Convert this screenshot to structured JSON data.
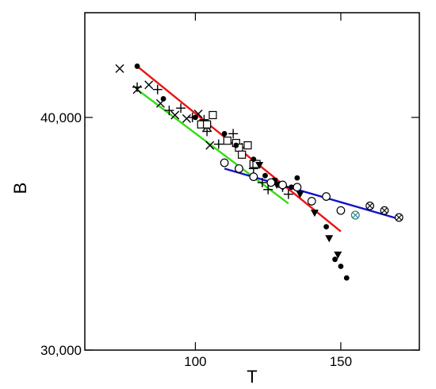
{
  "chart_data": {
    "type": "scatter",
    "title": "",
    "xlabel": "T",
    "ylabel": "B",
    "xlim": [
      62,
      177
    ],
    "ylim": [
      30000,
      44500
    ],
    "x_ticks": [
      {
        "value": 100,
        "label": "100"
      },
      {
        "value": 150,
        "label": "150"
      }
    ],
    "y_ticks": [
      {
        "value": 30000,
        "label": "30,000"
      },
      {
        "value": 40000,
        "label": "40,000"
      }
    ],
    "series": [
      {
        "marker": "x",
        "color": "#000000",
        "points": [
          [
            74,
            42100
          ],
          [
            80,
            41200
          ],
          [
            84,
            41400
          ],
          [
            88,
            40600
          ],
          [
            93,
            40100
          ],
          [
            97,
            39950
          ],
          [
            101,
            40150
          ],
          [
            104,
            39600
          ],
          [
            105,
            38800
          ]
        ]
      },
      {
        "marker": "plus",
        "color": "#000000",
        "points": [
          [
            80,
            41300
          ],
          [
            87,
            41200
          ],
          [
            91,
            40300
          ],
          [
            95,
            40400
          ],
          [
            99,
            40000
          ],
          [
            103,
            39900
          ],
          [
            104,
            39400
          ],
          [
            108,
            38850
          ],
          [
            113,
            39300
          ],
          [
            116,
            38700
          ],
          [
            120,
            37800
          ],
          [
            123,
            37200
          ],
          [
            125,
            36900
          ],
          [
            128,
            37200
          ],
          [
            130,
            37000
          ],
          [
            132,
            36700
          ]
        ]
      },
      {
        "marker": "square",
        "color": "#000000",
        "points": [
          [
            102,
            39700
          ],
          [
            104,
            39700
          ],
          [
            106,
            40100
          ],
          [
            111,
            39000
          ],
          [
            114,
            38900
          ],
          [
            115,
            38700
          ],
          [
            116,
            38400
          ],
          [
            118,
            38800
          ],
          [
            120,
            38000
          ],
          [
            121,
            38000
          ]
        ]
      },
      {
        "marker": "filled-circle",
        "color": "#000000",
        "points": [
          [
            80,
            42200
          ],
          [
            89,
            40800
          ],
          [
            100,
            40000
          ],
          [
            110,
            39300
          ],
          [
            114,
            38800
          ],
          [
            120,
            38200
          ],
          [
            124,
            37500
          ],
          [
            127,
            37300
          ],
          [
            130,
            37100
          ],
          [
            133,
            37000
          ],
          [
            135,
            37400
          ],
          [
            145,
            35300
          ],
          [
            148,
            33900
          ],
          [
            150,
            33600
          ],
          [
            152,
            33100
          ]
        ]
      },
      {
        "marker": "filled-triangle-down",
        "color": "#000000",
        "points": [
          [
            122,
            37950
          ],
          [
            128,
            37100
          ],
          [
            130,
            37000
          ],
          [
            136,
            36700
          ],
          [
            141,
            35900
          ],
          [
            146,
            34800
          ],
          [
            149,
            34100
          ]
        ]
      },
      {
        "marker": "open-circle",
        "color": "#000000",
        "points": [
          [
            110,
            38050
          ],
          [
            115,
            37800
          ],
          [
            120,
            37450
          ],
          [
            126,
            37200
          ],
          [
            130,
            37100
          ],
          [
            135,
            37000
          ],
          [
            140,
            36400
          ],
          [
            145,
            36600
          ],
          [
            150,
            36000
          ]
        ]
      },
      {
        "marker": "circle-x",
        "color": "#000000",
        "points": [
          [
            155,
            35800
          ],
          [
            160,
            36200
          ],
          [
            165,
            36000
          ],
          [
            170,
            35700
          ]
        ]
      },
      {
        "marker": "circle-x",
        "color": "#2e8b8b",
        "points": [
          [
            155,
            35800
          ]
        ]
      }
    ],
    "lines": [
      {
        "color": "#ee1111",
        "points": [
          [
            80,
            42200
          ],
          [
            150,
            35100
          ]
        ]
      },
      {
        "color": "#33dd11",
        "points": [
          [
            80,
            41200
          ],
          [
            132,
            36300
          ]
        ]
      },
      {
        "color": "#1111cc",
        "points": [
          [
            110,
            37800
          ],
          [
            171,
            35600
          ]
        ]
      }
    ]
  }
}
